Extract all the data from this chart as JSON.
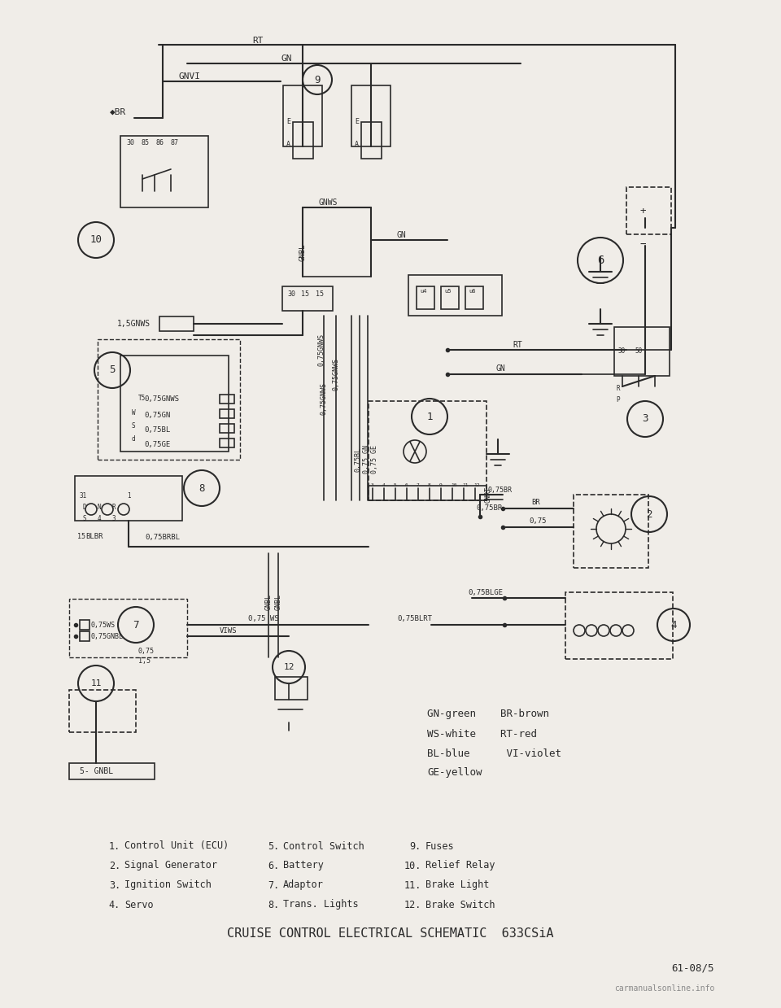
{
  "bg_color": "#f0ede8",
  "line_color": "#2a2a2a",
  "title": "CRUISE CONTROL ELECTRICAL SCHEMATIC  633CSiA",
  "page_ref": "61-08/5",
  "legend": [
    "GN-green    BR-brown",
    "WS-white    RT-red",
    "BL-blue      VI-violet",
    "GE-yellow"
  ],
  "col1": [
    [
      "1.",
      "Control Unit (ECU)"
    ],
    [
      "2.",
      "Signal Generator"
    ],
    [
      "3.",
      "Ignition Switch"
    ],
    [
      "4.",
      "Servo"
    ]
  ],
  "col2": [
    [
      "5.",
      "Control Switch"
    ],
    [
      "6.",
      "Battery"
    ],
    [
      "7.",
      "Adaptor"
    ],
    [
      "8.",
      "Trans. Lights"
    ]
  ],
  "col3": [
    [
      "9.",
      "Fuses"
    ],
    [
      "10.",
      "Relief Relay"
    ],
    [
      "11.",
      "Brake Light"
    ],
    [
      "12.",
      "Brake Switch"
    ]
  ],
  "watermark": "carmanualsonline.info"
}
